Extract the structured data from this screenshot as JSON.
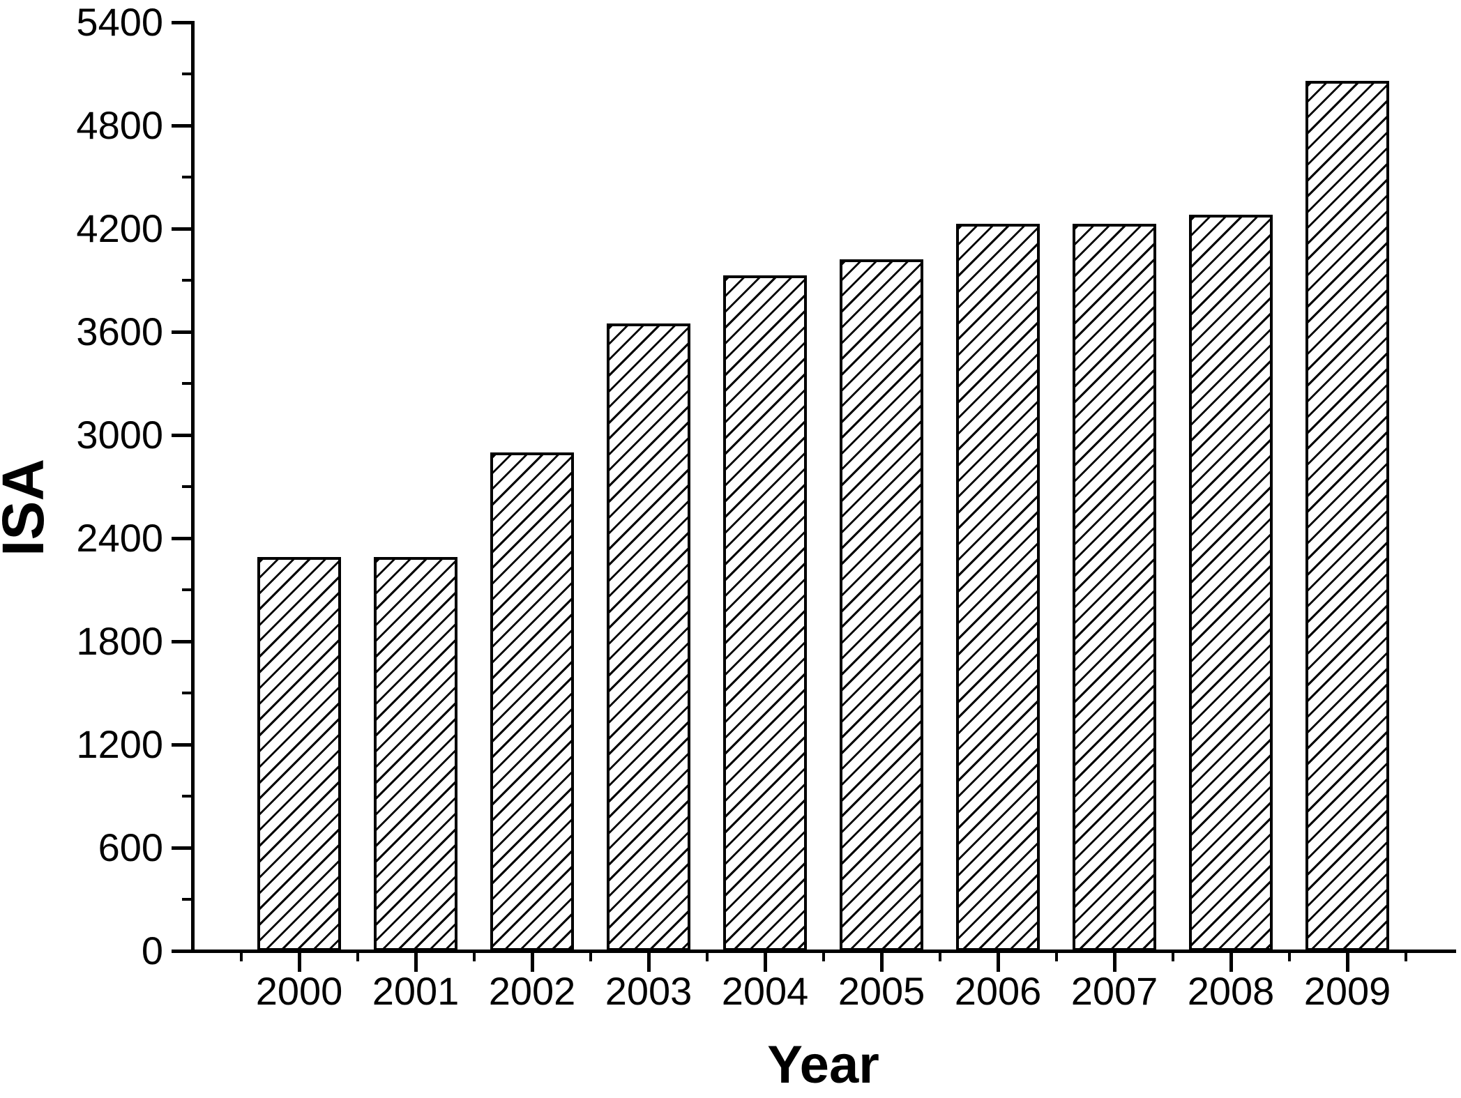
{
  "figure": {
    "background": "#ffffff",
    "axis_color": "#000000",
    "text_color": "#000000"
  },
  "chart_data": {
    "type": "bar",
    "title": "",
    "xlabel": "Year",
    "ylabel": "ISA",
    "categories": [
      "2000",
      "2001",
      "2002",
      "2003",
      "2004",
      "2005",
      "2006",
      "2007",
      "2008",
      "2009"
    ],
    "values": [
      2290,
      2290,
      2900,
      3650,
      3930,
      4020,
      4230,
      4230,
      4280,
      5060
    ],
    "ylim": [
      0,
      5400
    ],
    "y_major_step": 600,
    "y_minor_step": 300,
    "y_tick_labels": [
      "0",
      "600",
      "1200",
      "1800",
      "2400",
      "3000",
      "3600",
      "4200",
      "4800",
      "5400"
    ],
    "grid": false,
    "legend": "none",
    "bar_style": {
      "fill": "#ffffff",
      "hatch": "forward-diagonal",
      "edge_color": "#000000"
    },
    "axes_shown": [
      "left",
      "bottom"
    ]
  }
}
